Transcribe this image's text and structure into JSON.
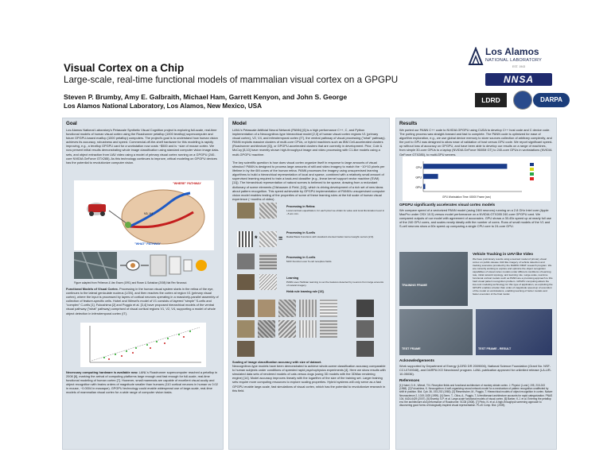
{
  "header": {
    "title": "Visual Cortex on a Chip",
    "subtitle": "Large-scale, real-time functional models of mammalian visual cortex on a GPGPU",
    "authors": "Steven P. Brumby, Amy E. Galbraith, Michael Ham, Garrett Kenyon, and John S. George",
    "affiliation": "Los Alamos National Laboratory, Los Alamos, New Mexico, USA"
  },
  "logos": {
    "lanl_name": "Los Alamos",
    "lanl_sub": "NATIONAL LABORATORY",
    "lanl_est": "EST. 1943",
    "nnsa": "NNSA",
    "lgrd": "LDRD",
    "darpa": "DARPA"
  },
  "goal": {
    "heading": "Goal",
    "text": "Los Alamos National Laboratory's Petascale Synthetic Visual Cognition project is exploring full-scale, real-time functional models of human visual cortex using the Roadrunner petaflop (1000 teraflop) supercomputer and future GPGPU-based exaflop (1000 petaflop) computers. The project's goal is to understand how human vision achieves its accuracy, robustness and speed. Commercial-off-the-shelf hardware for this modeling is rapidly improving, e.g., a teraflop GPGPU card for a workstation now costs ~$500 and is ~size of mouse cortex. We now present initial results demonstrating whole image classification using standard computer vision image data-sets, and object extraction from UAV video using a model of primary visual cortex running on a GPGPU (240-core NVIDIA GeForce GTX285). As this technology continues to improve, critical modeling on GPGPU devices has the potential to revolutionize computer vision.",
    "where_label": "\"WHERE\" PATHWAY",
    "what_label": "\"WHAT\" PATHWAY",
    "v1_label": "V2, V4",
    "diagram_caption": "Figure adapted from Felleman & Van Essen (1991) and Rosen & Sahakian (2008) Nat Rev Neurosci.",
    "functional_heading": "Functional Models of Visual Cortex.",
    "functional_text": "Processing in the human visual system starts in the retina of the eye, continues to the lateral geniculate nucleus (LGN), and then reaches the cortex at region V1 (primary visual cortex), where the input is processed by layers of cortical neurons operating in a massively-parallel assembly of collection of feature-specific cells. Hubel and Wiesel's model of V1 consists of layered \"simple\" S-cells and \"complex\" C-cells [1]. Fukushima [2] and Poggio et al. [3,4] have proposed hierarchical models of the ventral visual pathway (\"what\" pathway) comprised of visual cortical regions V1, V2, V4, supporting a model of whole object detection in inferotemporal cortex (IT).",
    "hardware_heading": "Necessary computing hardware is available now.",
    "hardware_text": "LANL's Roadrunner supercomputer reached a petaflop in 2008 [6], marking the arrival of computing platforms large enough and fast enough for full-scale, real-time functional modeling of human cortex [7]. However, small mammals are capable of excellent visual acuity and object recognition with brains orders of magnitude smaller than humans (110 cortical neurons in human vs 0.02 in mouse, ~0.0004 in macaque). GPGPU technology could enable widespread use of large-scale, real-time models of mammalian visual cortex for a wide range of computer vision tasks."
  },
  "model": {
    "heading": "Model",
    "text1": "LANL's Petascale Artificial Neural Network (PANN) [6] is a high performance C++, C, and Python implementation of a Neocognitron-type hierarchical model [2,3] of human visual cortex regions V1 (primary visual cortex), V2, V4, and inferotemporal cortex (IT), the ventral pathway of visual processing (\"what\" pathway). PANN exploits massive clusters of multi-core CPUs, or hybrid machines such as IBM Cell-accelerated clusters (Roadrunner architecture [6]), or GPGPU-accelerated clusters that are currently in development. Prior, Cole & McCoy [8,10] have recently shown high-throughput image and video processing with C1-like models using a multi-GPGPU machine.",
    "text2": "The key scientific question is how does visual cortex organize itself in response to large amounts of visual stimulus? PANN is designed to process large amounts of still and video imagery to match the ~10^10 pixels per lifetime in by the 6M cones of the human retina. PANN processes the imagery using unsupervised learning algorithms to build a hierarchical representation of local and sparse, combined with a relatively small amount of supervised learning required to train a back-end classifier (e.g., linear kernel support vector machine (SVM) [11]). The hierarchical representation of natural scenes is believed to be sparse, drawing from a redundant dictionary of scene elements (Olshausen & Field, [12]), which is driving development of a rich set of new ideas about pattern recognition. This speed achievable by GPGPU implementation of PANN's unsupervised computer vision model enables testing of the properties of some of these learning rules at the full scale of human visual experience (~months of video).",
    "stages": [
      {
        "label": "Processing in Retina",
        "text": "Local contrast equalization; for each pixel we obtain its value and local illumination level in ~5 arc-min."
      },
      {
        "label": "Processing in S-cells",
        "text": "Radial Basis Functions with standard oriented Gabor kernel weight vectors [2,6]."
      },
      {
        "label": "Processing in C-cells",
        "text": "MAX Function over S-cell receptive fields."
      },
      {
        "label": "Learning",
        "text": "PANN uses Hebbian learning to set the features detected by neurons from large amounts of natural imagery."
      },
      {
        "label": "Hebb rule learning rule [13].",
        "text": ""
      }
    ],
    "scaling_heading": "Scaling of image classification accuracy with size of dataset.",
    "scaling_text": "Neocognitron-type models have been demonstrated to achieve whole-scene classification accuracy comparable to human subjects under conditions of speeded rapid psychophysics experiments [4]. Here we show results with simulated data sets of rendered models of cats versus dogs (using 3D models with the 3DMax rendering engine) [14]. Model accuracy improves linearly with the logarithm of the size of the training set. Larger training sets require more computing resources to explore scaling properties. Hybrid systems will only serve as a fast GPGPU enable large-scale, fast simulations of visual cortex, which has the potential to revolutionize research in this field."
  },
  "results": {
    "heading": "Results",
    "text1": "We ported our PANN C++ code to NVIDIA GPGPU using CUDA to develop C++ host code and C device code. The porting process was straight-forward and fast to complete. The PANN code is optimized for ease of algorithm exploration, e.g., we use global device memory to store sources collection of arbitrary complexity, and the port to GPU was designed to allow ease of validation of host versus GPU code. We report significant speed-up without loss of accuracy on GPGPU, and have been able to develop our results on a range of machines, from simple 30-core GPUs to a laptop (NVIDIA GeForce 9600M GT) to 240-core GPUs in workstations (NVIDIA GeForce GTX285), to multi-GPU servers.",
    "chart_xlabel": "GPU Workstation Time: 60000 Frame (sec)",
    "gpgpu_heading": "GPGPU significantly accelerates visual cortex models",
    "gpgpu_text": "We compare speed of a vectorized PANN model (using 24M neurons) running on a 2.8 GHz Intel core (Apple MacPro under OSX 10.5) versus model performance on a NVIDIA GTX285 240-core GPGPU card. We compared outputs of our model with agreement of accuracies. GPU shows a 30-45x speed up at nearly full use of the 240 GPU cores, and scales nearly ideally with the number of cores. Runs of small models of the V1 and S-cell neurons show a 60x speed-up comparing a single CPU core to 24-core GPU.",
    "vehicle_heading": "Vehicle Tracking in UAV-like Video",
    "vehicle_text": "We have preliminary results using a learned model of primary visual cortex on public-release UAV-like imagery of vehicle detection and tracking scenarios provided by the DARPA VIRAT research program. We are currently working to explore and optimize the object recognition capabilities of visual cortex models under different conditions of learning rate, initial network topology, and learning rule. Large-scale, real-time functional cortical models such as PANN are a promising approach to this hard visual pattern recognition problem. GPGPU computing allows the low-cost modeling technology for this type of application, as exploiting the GPGPU enables a better than order-of-magnitude speed-up of execution of the model on workstations, enabling learning of better models and faster execution of the final model.",
    "training_frame_label": "TRAINING FRAME",
    "test_frame_label": "TEST FRAME",
    "test_frame_result_label": "TEST FRAME - RESULT",
    "ack_heading": "Acknowledgements",
    "ack_text": "Work supported by Department of Energy (LDRD DR 2009006), National Science Foundation (Grant No. NSF-CCI-0749348), and DARPA IXO Neovision2 program. LANL publication approved for unlimited release (LA-UR-10-05036).",
    "ref_heading": "References",
    "references": "[1] Hubel, D.H., Wiesel, T.N. Receptive fields and functional architecture of monkey striate cortex. J. Physiol. (Lond.) 195, 215-243 (1968). [2] Fukushima, K. Neocognitron: A self-organizing neural network model for a mechanism of pattern recognition unaffected by shift in position. Biol. Cyb. 36, 193-202 (1980). [3] Riesenhuber, M., Poggio, T. Hierarchical models of object recognition in cortex. Nature Neuroscience 2, 1019-1025 (1999). [4] Serre, T., Oliva, A., Poggio, T. A feedforward architecture accounts for rapid categorization. PNAS 104, 6424-6429 (2007). [5] Brumby, S.P. et al. Large-scale functional models of visual cortex. [6] Barker, K.J. et al. Entering the petaflop era: the architecture and performance of Roadrunner. SC08 (2008). [7] Pinto, N. et al. A high-throughput screening approach to discovering good forms of biologically inspired visual representation. PLoS Comp. Biol. (2009).",
    "chart_data": {
      "type": "bar",
      "orientation": "horizontal",
      "categories": [
        "CPU",
        "GPU",
        "GPU"
      ],
      "series": [
        {
          "name": "",
          "values": [
            340,
            60,
            8
          ]
        }
      ],
      "title": "",
      "xlabel": "GPU Workstation Time: 60000 Frame (sec)",
      "ylabel": "",
      "xlim": [
        0,
        400
      ],
      "grid": true,
      "legend_position": "right",
      "colors": [
        "#1a3c8a",
        "#d9d916",
        "#2ba84a",
        "#e02222"
      ]
    }
  },
  "colors": {
    "panel_bg": "#dce3ea",
    "panel_border": "#c6cfd8",
    "lanl_blue": "#1d2a55",
    "pathway_red": "#c41e1e",
    "pathway_blue": "#1e5ac4"
  }
}
